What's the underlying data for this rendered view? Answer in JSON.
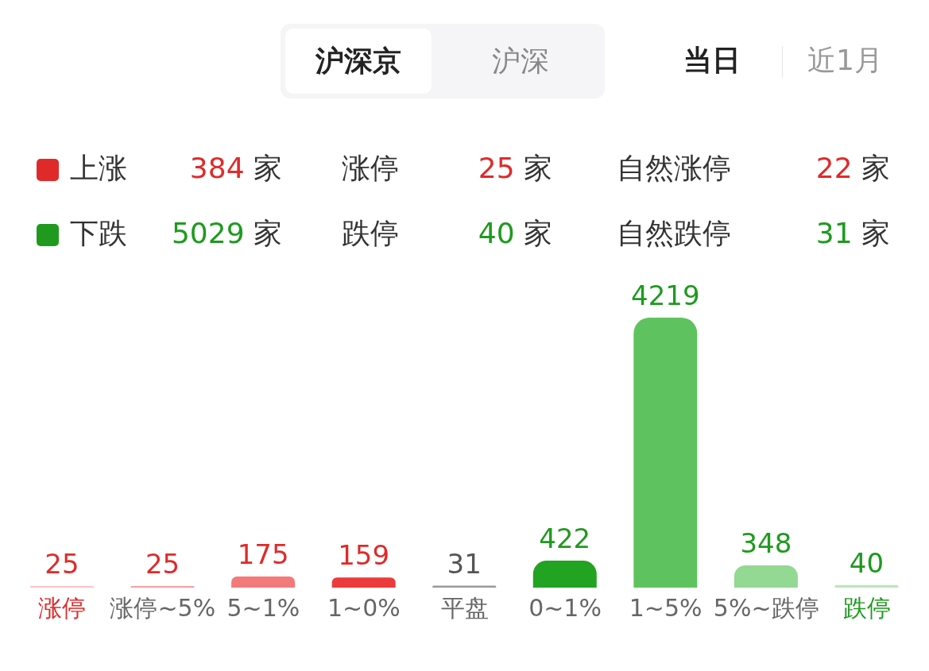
{
  "chart_data": {
    "type": "bar",
    "categories": [
      "涨停",
      "涨停~5%",
      "5~1%",
      "1~0%",
      "平盘",
      "0~1%",
      "1~5%",
      "5%~跌停",
      "跌停"
    ],
    "values": [
      25,
      25,
      175,
      159,
      31,
      422,
      4219,
      348,
      40
    ],
    "colors": [
      "#f9c3c6",
      "#f5a0a0",
      "#f27a7a",
      "#ec3b3b",
      "#9a9a9a",
      "#22a322",
      "#5ec35e",
      "#93d893",
      "#bde6bd"
    ],
    "data_labels": true,
    "annotations": [
      "沪深京",
      "沪深",
      "当日",
      "近1月",
      "上涨",
      "384 家",
      "涨停",
      "25 家",
      "自然涨停",
      "22 家",
      "下跌",
      "5029 家",
      "跌停",
      "40 家",
      "自然跌停",
      "31 家"
    ]
  }
}
